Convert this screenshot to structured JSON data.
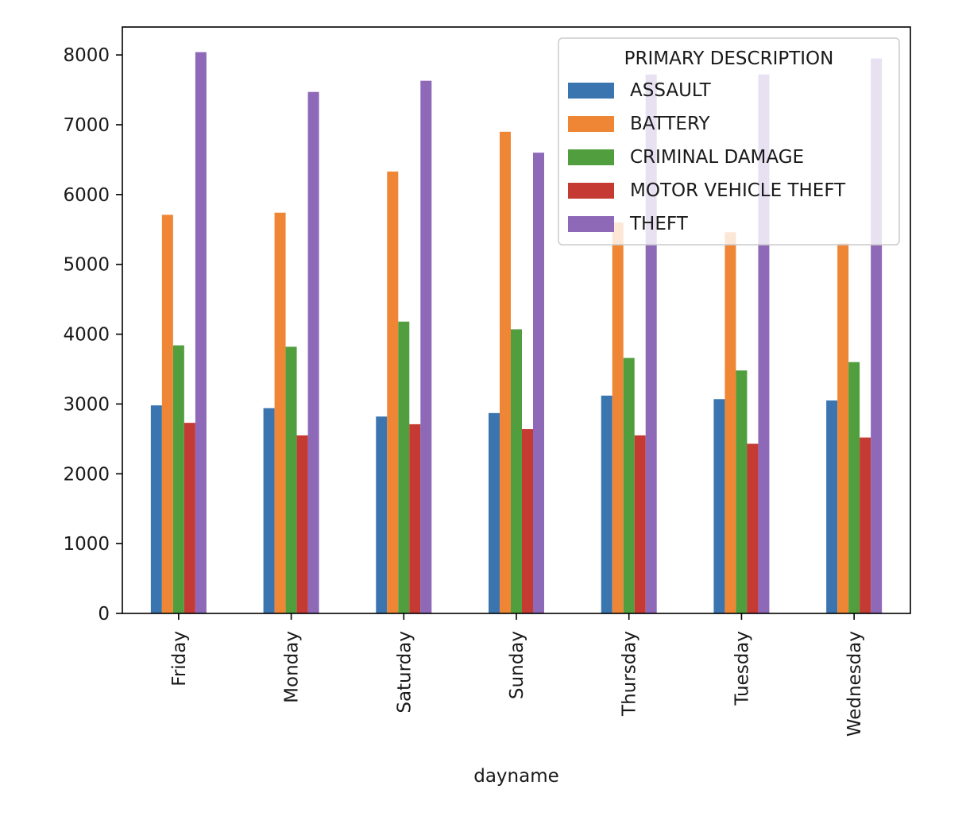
{
  "chart_data": {
    "type": "bar",
    "title": "",
    "xlabel": "dayname",
    "ylabel": "",
    "ylim": [
      0,
      8400
    ],
    "yticks": [
      0,
      1000,
      2000,
      3000,
      4000,
      5000,
      6000,
      7000,
      8000
    ],
    "categories": [
      "Friday",
      "Monday",
      "Saturday",
      "Sunday",
      "Thursday",
      "Tuesday",
      "Wednesday"
    ],
    "legend": {
      "title": "PRIMARY DESCRIPTION",
      "placement": "top-right"
    },
    "series": [
      {
        "name": "ASSAULT",
        "color": "#3b75af",
        "values": [
          2980,
          2940,
          2820,
          2870,
          3120,
          3070,
          3050
        ]
      },
      {
        "name": "BATTERY",
        "color": "#ef8636",
        "values": [
          5710,
          5740,
          6330,
          6900,
          5600,
          5460,
          5300
        ]
      },
      {
        "name": "CRIMINAL DAMAGE",
        "color": "#519e3e",
        "values": [
          3840,
          3820,
          4180,
          4070,
          3660,
          3480,
          3600
        ]
      },
      {
        "name": "MOTOR VEHICLE THEFT",
        "color": "#c53a32",
        "values": [
          2730,
          2550,
          2710,
          2640,
          2550,
          2430,
          2520
        ]
      },
      {
        "name": "THEFT",
        "color": "#8d69b8",
        "values": [
          8040,
          7470,
          7630,
          6600,
          7720,
          7720,
          7950
        ]
      }
    ]
  }
}
